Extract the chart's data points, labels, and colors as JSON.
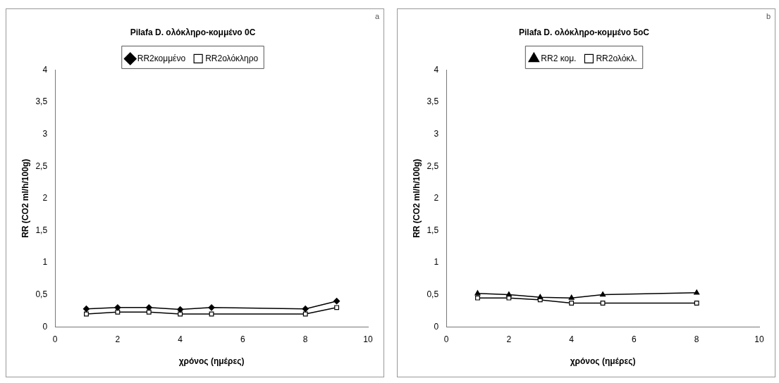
{
  "chart_data": [
    {
      "type": "line",
      "title": "Pilafa D. ολόκληρο-κομμένο 0C",
      "xlabel": "χρόνος (ημέρες)",
      "ylabel": "RR (CO2 ml/h/100g)",
      "annotations": [
        "a"
      ],
      "series": [
        {
          "name": "RR2κομμένο",
          "color": "#000000",
          "marker": "diamond",
          "x": [
            1,
            2,
            3,
            4,
            5,
            8,
            9
          ],
          "values": [
            0.28,
            0.3,
            0.3,
            0.27,
            0.3,
            0.28,
            0.4
          ]
        },
        {
          "name": "RR2ολόκληρο",
          "color": "#000000",
          "marker": "square",
          "x": [
            1,
            2,
            3,
            4,
            5,
            8,
            9
          ],
          "values": [
            0.2,
            0.23,
            0.23,
            0.2,
            0.2,
            0.2,
            0.3
          ]
        }
      ],
      "xlim": [
        0,
        10
      ],
      "xticks": [
        0,
        2,
        4,
        6,
        8,
        10
      ],
      "ylim": [
        0,
        4
      ],
      "yticks": [
        0,
        {
          "value": 0.5,
          "label": "0,5"
        },
        1,
        {
          "value": 1.5,
          "label": "1,5"
        },
        2,
        {
          "value": 2.5,
          "label": "2,5"
        },
        3,
        {
          "value": 3.5,
          "label": "3,5"
        },
        4
      ],
      "grid": false,
      "legend": "top"
    },
    {
      "type": "line",
      "title": "Pilafa D. ολόκληρο-κομμένο 5oC",
      "xlabel": "χρόνος (ημέρες)",
      "ylabel": "RR (CO2 ml/h/100g)",
      "annotations": [
        "b"
      ],
      "series": [
        {
          "name": "RR2 κομ.",
          "color": "#000000",
          "marker": "triangle",
          "x": [
            1,
            2,
            3,
            4,
            5,
            8
          ],
          "values": [
            0.52,
            0.5,
            0.46,
            0.45,
            0.5,
            0.53
          ]
        },
        {
          "name": "RR2ολόκλ.",
          "color": "#000000",
          "marker": "square",
          "x": [
            1,
            2,
            3,
            4,
            5,
            8
          ],
          "values": [
            0.45,
            0.45,
            0.42,
            0.37,
            0.37,
            0.37
          ]
        }
      ],
      "xlim": [
        0,
        10
      ],
      "xticks": [
        0,
        2,
        4,
        6,
        8,
        10
      ],
      "ylim": [
        0,
        4
      ],
      "yticks": [
        0,
        {
          "value": 0.5,
          "label": "0,5"
        },
        1,
        {
          "value": 1.5,
          "label": "1,5"
        },
        2,
        {
          "value": 2.5,
          "label": "2,5"
        },
        3,
        {
          "value": 3.5,
          "label": "3,5"
        },
        4
      ],
      "grid": false,
      "legend": "top"
    }
  ]
}
